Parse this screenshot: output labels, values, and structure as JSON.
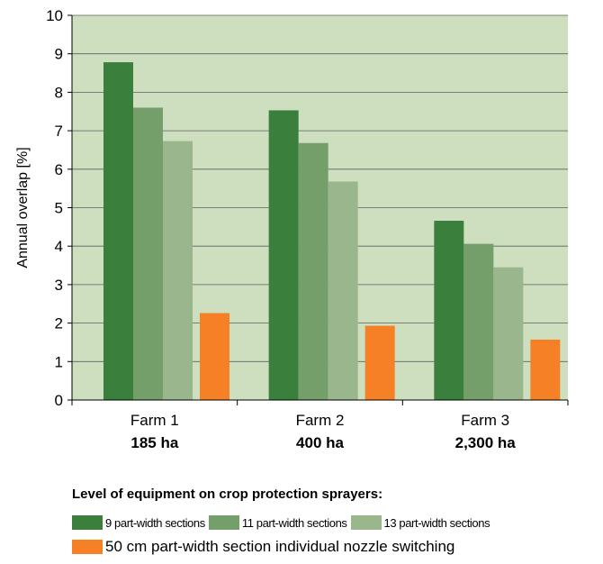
{
  "chart_data": {
    "type": "bar",
    "categories": [
      "Farm 1",
      "Farm 2",
      "Farm 3"
    ],
    "category_sublabels": [
      "185 ha",
      "400 ha",
      "2,300 ha"
    ],
    "series": [
      {
        "name": "9 part-width sections",
        "values": [
          8.78,
          7.53,
          4.66
        ],
        "color": "#3a7f3c"
      },
      {
        "name": "11 part-width sections",
        "values": [
          7.6,
          6.68,
          4.06
        ],
        "color": "#749f6a"
      },
      {
        "name": "13 part-width sections",
        "values": [
          6.73,
          5.68,
          3.45
        ],
        "color": "#9ab68c"
      },
      {
        "name": "50 cm part-width section individual nozzle switching",
        "values": [
          2.26,
          1.93,
          1.57
        ],
        "color": "#f58025"
      }
    ],
    "ylabel": "Annual overlap [%]",
    "xlabel": "",
    "ylim": [
      0,
      10
    ],
    "yticks": [
      "0",
      "1",
      "2",
      "3",
      "4",
      "5",
      "6",
      "7",
      "8",
      "9",
      "10"
    ],
    "grid": true,
    "plot_background": "#cddfbf",
    "legend_title": "Level of equipment on crop protection sprayers:",
    "legend_position": "bottom"
  }
}
